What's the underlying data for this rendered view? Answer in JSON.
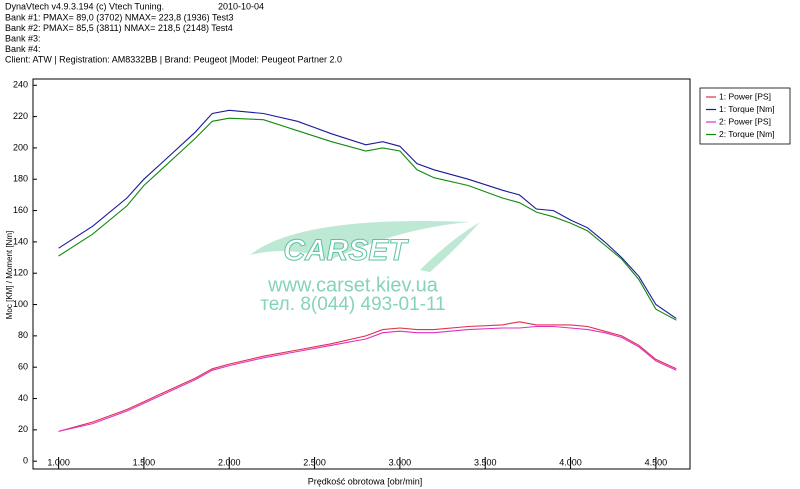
{
  "header": {
    "app": "DynaVtech v4.9.3.194 (c) Vtech Tuning.",
    "date": "2010-10-04",
    "lines": [
      "Bank #1: PMAX= 89,0 (3702)   NMAX= 223,8 (1936)   Test3",
      "Bank #2: PMAX= 85,5 (3811)   NMAX= 218,5 (2148)   Test4",
      "Bank #3:",
      "Bank #4:",
      "Client:  ATW | Registration:  AM8332BB | Brand: Peugeot |Model: Peugeot Partner 2.0"
    ]
  },
  "watermark": {
    "logo": "CARSET",
    "url": "www.carset.kiev.ua",
    "phone": "тел. 8(044) 493-01-11"
  },
  "chart_data": {
    "type": "line",
    "x_label": "Prędkość obrotowa [obr/min]",
    "y_label": "Moc [KM] / Moment [Nm]",
    "x": [
      1000,
      1200,
      1400,
      1500,
      1600,
      1800,
      1900,
      2000,
      2200,
      2400,
      2600,
      2800,
      2900,
      3000,
      3100,
      3200,
      3400,
      3600,
      3700,
      3800,
      3900,
      4000,
      4100,
      4200,
      4300,
      4400,
      4500,
      4620
    ],
    "series": [
      {
        "name": "1: Power [PS]",
        "color": "#e0304e",
        "values": [
          19,
          25,
          33,
          38,
          43,
          53,
          59,
          62,
          67,
          71,
          75,
          80,
          84,
          85,
          84,
          84,
          86,
          87,
          89,
          87,
          87,
          87,
          86,
          83,
          80,
          74,
          65,
          59
        ]
      },
      {
        "name": "1: Torque [Nm]",
        "color": "#1a1a9a",
        "values": [
          136,
          150,
          168,
          180,
          190,
          210,
          222,
          224,
          222,
          217,
          209,
          202,
          204,
          201,
          190,
          186,
          180,
          173,
          170,
          161,
          160,
          154,
          149,
          140,
          130,
          118,
          100,
          91
        ]
      },
      {
        "name": "2: Power [PS]",
        "color": "#e030c0",
        "values": [
          19,
          24,
          32,
          37,
          42,
          52,
          58,
          61,
          66,
          70,
          74,
          78,
          82,
          83,
          82,
          82,
          84,
          85,
          85,
          86,
          86,
          85,
          84,
          82,
          79,
          73,
          64,
          58
        ]
      },
      {
        "name": "2: Torque [Nm]",
        "color": "#108a10",
        "values": [
          131,
          145,
          163,
          176,
          186,
          206,
          217,
          219,
          218,
          211,
          204,
          198,
          200,
          198,
          186,
          181,
          176,
          168,
          165,
          159,
          156,
          152,
          147,
          138,
          129,
          116,
          97,
          90
        ]
      }
    ],
    "xlim": [
      850,
      4700
    ],
    "ylim": [
      -5,
      244
    ],
    "xticks": [
      {
        "value": 1000,
        "label": "1.000"
      },
      {
        "value": 1500,
        "label": "1.500"
      },
      {
        "value": 2000,
        "label": "2.000"
      },
      {
        "value": 2500,
        "label": "2.500"
      },
      {
        "value": 3000,
        "label": "3.000"
      },
      {
        "value": 3500,
        "label": "3.500"
      },
      {
        "value": 4000,
        "label": "4.000"
      },
      {
        "value": 4500,
        "label": "4.500"
      }
    ],
    "yticks": [
      0,
      20,
      40,
      60,
      80,
      100,
      120,
      140,
      160,
      180,
      200,
      220,
      240
    ],
    "grid": false,
    "legend": "right"
  }
}
